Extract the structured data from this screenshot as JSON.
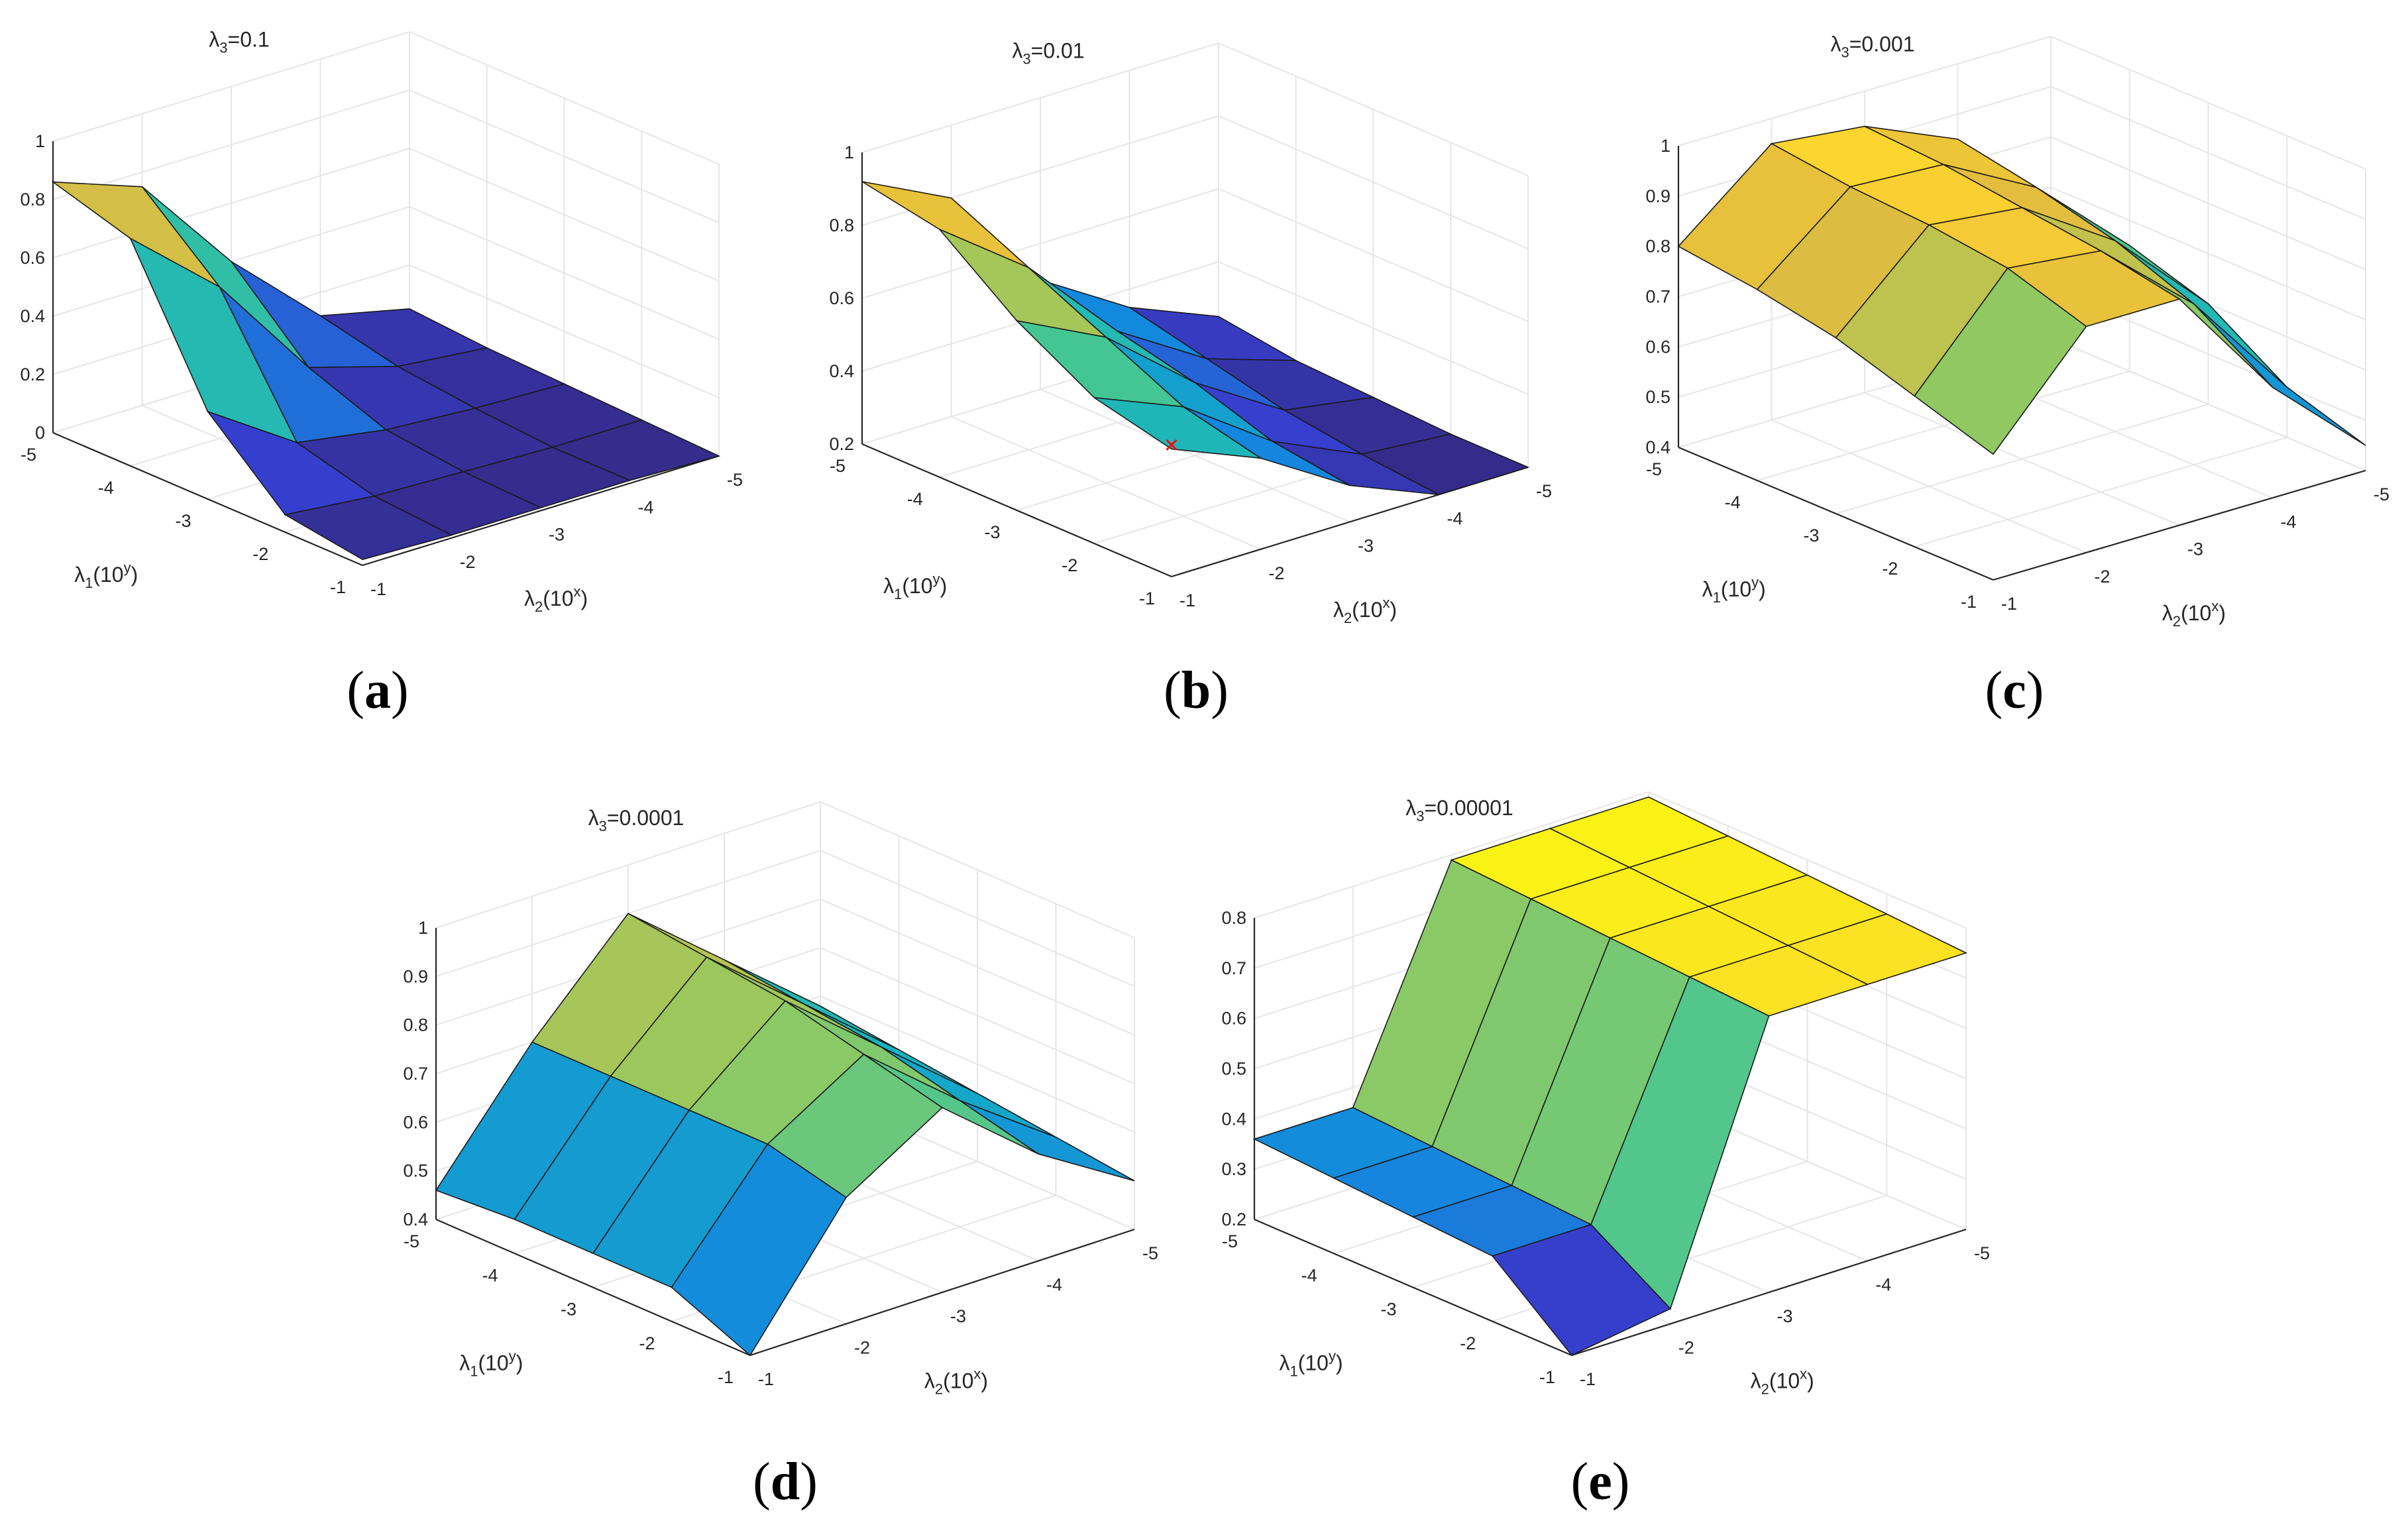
{
  "figure": {
    "axis_labels": {
      "x_base": "λ",
      "x_sub": "2",
      "x_paren": "(10",
      "x_sup": "x",
      "x_close": ")",
      "y_base": "λ",
      "y_sub": "1",
      "y_paren": "(10",
      "y_sup": "y",
      "y_close": ")"
    },
    "grid_ticks": [
      -5,
      -4,
      -3,
      -2,
      -1
    ]
  },
  "chart_data": [
    {
      "type": "surface",
      "panel": "a",
      "caption": "(a)",
      "title_prefix": "λ",
      "title_sub": "3",
      "title_value": "=0.1",
      "x": [
        -1,
        -2,
        -3,
        -4,
        -5
      ],
      "y": [
        -1,
        -2,
        -3,
        -4,
        -5
      ],
      "xlabel": "λ2(10^x)",
      "ylabel": "λ1(10^y)",
      "zlim": [
        0,
        1
      ],
      "zticks": [
        "0",
        "0.2",
        "0.4",
        "0.6",
        "0.8",
        "1"
      ],
      "xticks": [
        "-1",
        "-2",
        "-3",
        "-4",
        "-5"
      ],
      "yticks": [
        "-5",
        "-4",
        "-3",
        "-2",
        "-1"
      ],
      "z": [
        [
          0.02,
          0.01,
          0.01,
          0.01,
          0.0
        ],
        [
          0.06,
          0.03,
          0.02,
          0.01,
          0.01
        ],
        [
          0.3,
          0.1,
          0.05,
          0.03,
          0.02
        ],
        [
          0.78,
          0.52,
          0.15,
          0.06,
          0.03
        ],
        [
          0.86,
          0.75,
          0.4,
          0.12,
          0.05
        ]
      ],
      "marker": null
    },
    {
      "type": "surface",
      "panel": "b",
      "caption": "(b)",
      "title_prefix": "λ",
      "title_sub": "3",
      "title_value": "=0.01",
      "x": [
        -1,
        -2,
        -3,
        -4,
        -5
      ],
      "y": [
        -1,
        -2,
        -3,
        -4,
        -5
      ],
      "xlabel": "λ2(10^x)",
      "ylabel": "λ1(10^y)",
      "zlim": [
        0.2,
        1
      ],
      "zticks": [
        "0.2",
        "0.4",
        "0.6",
        "0.8",
        "1"
      ],
      "xticks": [
        "-1",
        "-2",
        "-3",
        "-4",
        "-5"
      ],
      "yticks": [
        "-5",
        "-4",
        "-3",
        "-2",
        "-1"
      ],
      "z": [
        [
          0.55,
          0.45,
          0.3,
          0.2,
          0.2
        ],
        [
          0.6,
          0.5,
          0.33,
          0.22,
          0.2
        ],
        [
          0.72,
          0.6,
          0.4,
          0.25,
          0.21
        ],
        [
          0.88,
          0.7,
          0.45,
          0.3,
          0.22
        ],
        [
          0.92,
          0.8,
          0.5,
          0.35,
          0.25
        ]
      ],
      "marker": {
        "x": -1,
        "y": -1,
        "z": 0.56,
        "symbol": "×",
        "color": "#ff0000"
      }
    },
    {
      "type": "surface",
      "panel": "c",
      "caption": "(c)",
      "title_prefix": "λ",
      "title_sub": "3",
      "title_value": "=0.001",
      "x": [
        -1,
        -2,
        -3,
        -4,
        -5
      ],
      "y": [
        -1,
        -2,
        -3,
        -4,
        -5
      ],
      "xlabel": "λ2(10^x)",
      "ylabel": "λ1(10^y)",
      "zlim": [
        0.4,
        1
      ],
      "zticks": [
        "0.4",
        "0.5",
        "0.6",
        "0.7",
        "0.8",
        "0.9",
        "1"
      ],
      "xticks": [
        "-1",
        "-2",
        "-3",
        "-4",
        "-5"
      ],
      "yticks": [
        "-5",
        "-4",
        "-3",
        "-2",
        "-1"
      ],
      "z": [
        [
          0.65,
          0.85,
          0.85,
          0.62,
          0.45
        ],
        [
          0.7,
          0.9,
          0.88,
          0.72,
          0.5
        ],
        [
          0.75,
          0.92,
          0.9,
          0.78,
          0.6
        ],
        [
          0.78,
          0.93,
          0.92,
          0.82,
          0.65
        ],
        [
          0.8,
          0.95,
          0.93,
          0.85,
          0.68
        ]
      ],
      "marker": null
    },
    {
      "type": "surface",
      "panel": "d",
      "caption": "(d)",
      "title_prefix": "λ",
      "title_sub": "3",
      "title_value": "=0.0001",
      "x": [
        -1,
        -2,
        -3,
        -4,
        -5
      ],
      "y": [
        -1,
        -2,
        -3,
        -4,
        -5
      ],
      "xlabel": "λ2(10^x)",
      "ylabel": "λ1(10^y)",
      "zlim": [
        0.4,
        1
      ],
      "zticks": [
        "0.4",
        "0.5",
        "0.6",
        "0.7",
        "0.8",
        "0.9",
        "1"
      ],
      "xticks": [
        "-1",
        "-2",
        "-3",
        "-4",
        "-5"
      ],
      "yticks": [
        "-5",
        "-4",
        "-3",
        "-2",
        "-1"
      ],
      "z": [
        [
          0.4,
          0.66,
          0.78,
          0.62,
          0.5
        ],
        [
          0.47,
          0.7,
          0.82,
          0.66,
          0.52
        ],
        [
          0.47,
          0.7,
          0.86,
          0.7,
          0.54
        ],
        [
          0.47,
          0.7,
          0.88,
          0.72,
          0.56
        ],
        [
          0.46,
          0.7,
          0.9,
          0.74,
          0.58
        ]
      ],
      "marker": null
    },
    {
      "type": "surface",
      "panel": "e",
      "caption": "(e)",
      "title_prefix": "λ",
      "title_sub": "3",
      "title_value": "=0.00001",
      "x": [
        -1,
        -2,
        -3,
        -4,
        -5
      ],
      "y": [
        -1,
        -2,
        -3,
        -4,
        -5
      ],
      "xlabel": "λ2(10^x)",
      "ylabel": "λ1(10^y)",
      "zlim": [
        0.2,
        0.8
      ],
      "zticks": [
        "0.2",
        "0.3",
        "0.4",
        "0.5",
        "0.6",
        "0.7",
        "0.8"
      ],
      "xticks": [
        "-1",
        "-2",
        "-3",
        "-4",
        "-5"
      ],
      "yticks": [
        "-5",
        "-4",
        "-3",
        "-2",
        "-1"
      ],
      "z": [
        [
          0.2,
          0.23,
          0.75,
          0.75,
          0.75
        ],
        [
          0.33,
          0.33,
          0.76,
          0.76,
          0.76
        ],
        [
          0.34,
          0.34,
          0.77,
          0.77,
          0.77
        ],
        [
          0.35,
          0.35,
          0.78,
          0.78,
          0.78
        ],
        [
          0.36,
          0.36,
          0.79,
          0.79,
          0.79
        ]
      ],
      "marker": null
    }
  ]
}
